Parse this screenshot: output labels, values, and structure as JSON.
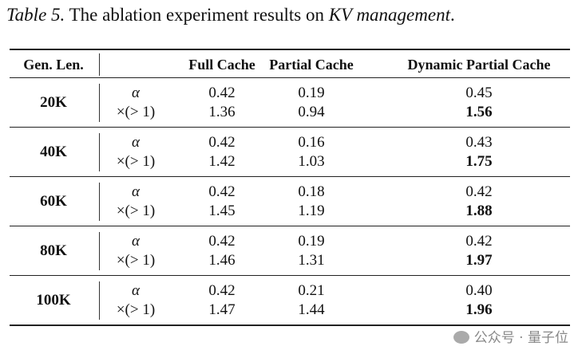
{
  "caption": {
    "label": "Table 5.",
    "text_before": " The ablation experiment results on ",
    "italic_term": "KV management",
    "text_after": "."
  },
  "header": {
    "gen_len": "Gen. Len.",
    "metric": "",
    "columns": [
      "Full Cache",
      "Partial Cache",
      "Dynamic Partial Cache"
    ]
  },
  "rows": [
    {
      "gen_len": "20K",
      "alpha_label": "α",
      "speed_label": "×(> 1)",
      "alpha": [
        "0.42",
        "0.19",
        "0.45"
      ],
      "speed": [
        "1.36",
        "0.94",
        "1.56"
      ]
    },
    {
      "gen_len": "40K",
      "alpha_label": "α",
      "speed_label": "×(> 1)",
      "alpha": [
        "0.42",
        "0.16",
        "0.43"
      ],
      "speed": [
        "1.42",
        "1.03",
        "1.75"
      ]
    },
    {
      "gen_len": "60K",
      "alpha_label": "α",
      "speed_label": "×(> 1)",
      "alpha": [
        "0.42",
        "0.18",
        "0.42"
      ],
      "speed": [
        "1.45",
        "1.19",
        "1.88"
      ]
    },
    {
      "gen_len": "80K",
      "alpha_label": "α",
      "speed_label": "×(> 1)",
      "alpha": [
        "0.42",
        "0.19",
        "0.42"
      ],
      "speed": [
        "1.46",
        "1.31",
        "1.97"
      ]
    },
    {
      "gen_len": "100K",
      "alpha_label": "α",
      "speed_label": "×(> 1)",
      "alpha": [
        "0.42",
        "0.21",
        "0.40"
      ],
      "speed": [
        "1.47",
        "1.44",
        "1.96"
      ]
    }
  ],
  "watermark": "公众号 · 量子位"
}
